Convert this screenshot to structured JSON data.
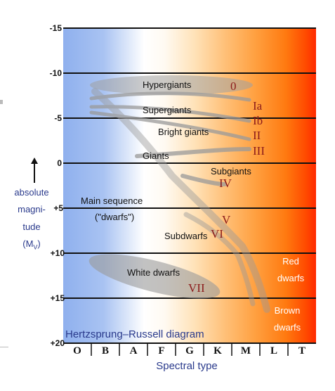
{
  "title": "Hertzsprung–Russell diagram",
  "x_axis": {
    "label": "Spectral type",
    "classes": [
      "O",
      "B",
      "A",
      "F",
      "G",
      "K",
      "M",
      "L",
      "T"
    ]
  },
  "y_axis": {
    "label_lines": [
      "absolute",
      "magni-",
      "tude"
    ],
    "symbol": "M",
    "symbol_sub": "V",
    "ticks": [
      "-15",
      "-10",
      "-5",
      "0",
      "+5",
      "+10",
      "+15",
      "+20"
    ]
  },
  "regions": {
    "hypergiants": "Hypergiants",
    "supergiants": "Supergiants",
    "bright_giants": "Bright giants",
    "giants": "Giants",
    "subgiants": "Subgiants",
    "main_sequence": "Main sequence",
    "dwarfs": "(\"dwarfs\")",
    "subdwarfs": "Subdwarfs",
    "white_dwarfs": "White dwarfs",
    "red_dwarfs_1": "Red",
    "red_dwarfs_2": "dwarfs",
    "brown_dwarfs_1": "Brown",
    "brown_dwarfs_2": "dwarfs"
  },
  "luminosity_classes": {
    "c0": "0",
    "cIa": "Ia",
    "cIb": "Ib",
    "cII": "II",
    "cIII": "III",
    "cIV": "IV",
    "cV": "V",
    "cVI": "VI",
    "cVII": "VII"
  },
  "colors": {
    "class_label": "#8b1a1a",
    "axis_text": "#2a3a8c",
    "band": "#999999"
  }
}
